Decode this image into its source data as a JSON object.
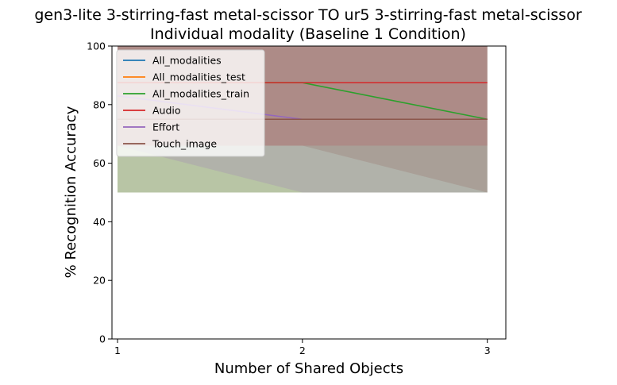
{
  "chart_data": {
    "type": "line",
    "title": "gen3-lite 3-stirring-fast metal-scissor TO ur5 3-stirring-fast metal-scissor",
    "subtitle": "Individual modality (Baseline 1 Condition)",
    "xlabel": "Number of Shared Objects",
    "ylabel": "% Recognition Accuracy",
    "x": [
      1,
      2,
      3
    ],
    "xticks": [
      "1",
      "2",
      "3"
    ],
    "yticks": [
      "0",
      "20",
      "40",
      "60",
      "80",
      "100"
    ],
    "xlim": [
      0.97,
      3.1
    ],
    "ylim": [
      0,
      100
    ],
    "grid": false,
    "legend_position": "top-left",
    "series": [
      {
        "name": "All_modalities",
        "color": "#1f77b4",
        "values": [
          75,
          75,
          75
        ],
        "band_lower": [
          50,
          50,
          50
        ],
        "band_upper": [
          100,
          100,
          100
        ]
      },
      {
        "name": "All_modalities_test",
        "color": "#ff7f0e",
        "values": [
          75,
          75,
          75
        ],
        "band_lower": [
          50,
          50,
          50
        ],
        "band_upper": [
          100,
          100,
          100
        ]
      },
      {
        "name": "All_modalities_train",
        "color": "#2ca02c",
        "values": [
          87.5,
          87.5,
          75
        ],
        "band_lower": [
          50,
          50,
          50
        ],
        "band_upper": [
          100,
          100,
          100
        ]
      },
      {
        "name": "Audio",
        "color": "#d62728",
        "values": [
          87.5,
          87.5,
          87.5
        ],
        "band_lower": [
          66,
          66,
          66
        ],
        "band_upper": [
          100,
          100,
          100
        ]
      },
      {
        "name": "Effort",
        "color": "#9467bd",
        "values": [
          83,
          75,
          75
        ],
        "band_lower": [
          66,
          50,
          50
        ],
        "band_upper": [
          100,
          100,
          100
        ]
      },
      {
        "name": "Touch_image",
        "color": "#8c564b",
        "values": [
          75,
          75,
          75
        ],
        "band_lower": [
          66,
          66,
          50
        ],
        "band_upper": [
          100,
          100,
          100
        ]
      }
    ]
  }
}
